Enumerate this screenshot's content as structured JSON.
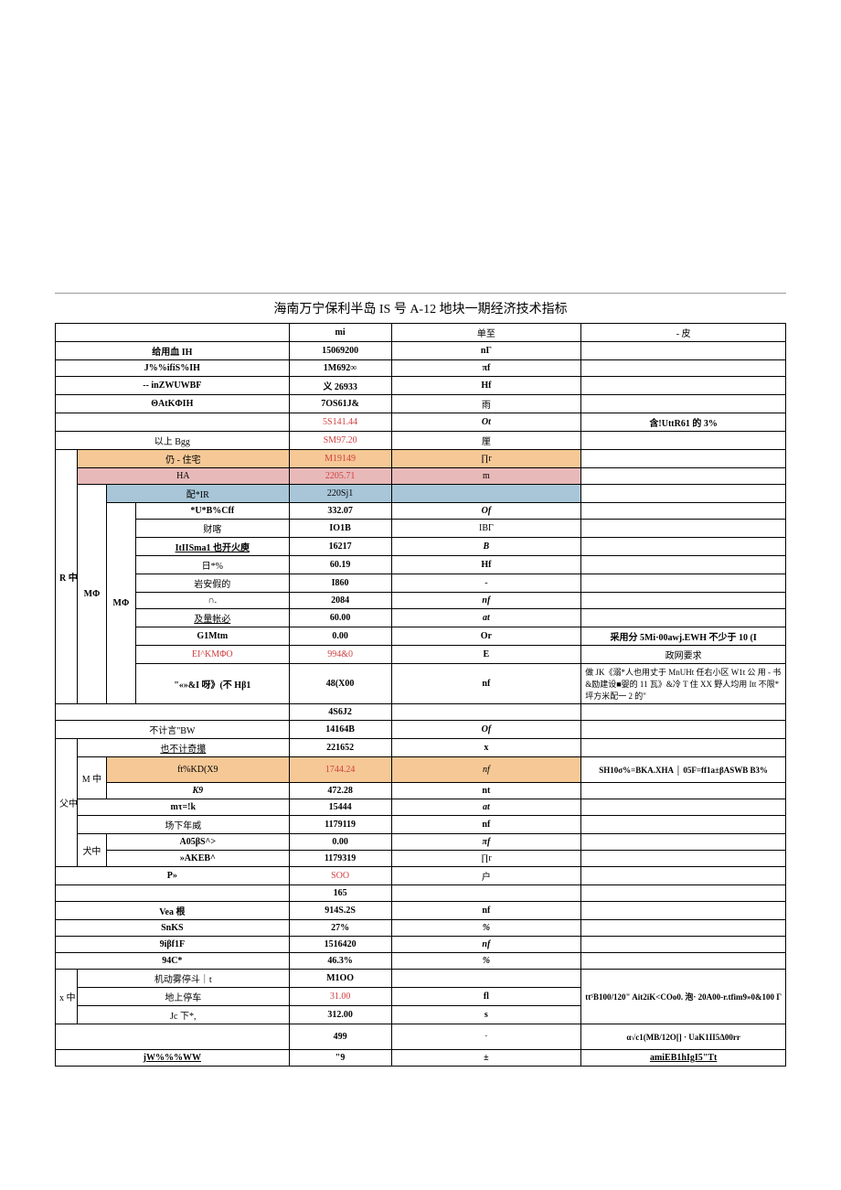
{
  "title": "海南万宁保利半岛 IS 号 A-12 地块一期经济技术指标",
  "header": {
    "col1": "mi",
    "col2": "单至",
    "col3": "- 皮"
  },
  "rows": {
    "r1": {
      "label": "给用血 IH",
      "v1": "15069200",
      "v2": "nΓ",
      "v3": ""
    },
    "r2": {
      "label": "J%%ifiS%IH",
      "v1": "1M692∞",
      "v2": "πf",
      "v3": ""
    },
    "r3": {
      "label": "-- inZWUWBF",
      "v1": "义 26933",
      "v2": "Hf",
      "v3": ""
    },
    "r4": {
      "label": "ΘAtKΦIH",
      "v1": "7OS61J&",
      "v2": "雨",
      "v3": ""
    },
    "r5": {
      "label": "",
      "v1": "5S141.44",
      "v2": "Ot",
      "v3": "含!UttR61 的 3%"
    },
    "r6": {
      "label": "以上 Bgg",
      "v1": "SM97.20",
      "v2": "厘",
      "v3": ""
    },
    "r7": {
      "label": "仍 - 住宅",
      "v1": "M19149",
      "v2": "∏r",
      "v3": ""
    },
    "r8": {
      "label": "HA",
      "v1": "2205.71",
      "v2": "m",
      "v3": ""
    },
    "r9": {
      "label": "配*IR",
      "v1": "220Sj1",
      "v2": "",
      "v3": ""
    },
    "r10": {
      "label": "*U*B%Cff",
      "v1": "332.07",
      "v2": "Of",
      "v3": ""
    },
    "r11": {
      "label": "财喀",
      "v1": "IO1B",
      "v2": "IBΓ",
      "v3": ""
    },
    "r12": {
      "label": "ItIISma1 也开火庾",
      "v1": "16217",
      "v2": "B",
      "v3": ""
    },
    "r13": {
      "label": "日*%",
      "v1": "60.19",
      "v2": "Hf",
      "v3": ""
    },
    "r14": {
      "label": "岩安假的",
      "v1": "I860",
      "v2": "-",
      "v3": ""
    },
    "r15": {
      "label": "∩.",
      "v1": "2084",
      "v2": "nf",
      "v3": ""
    },
    "r16": {
      "label": "及量帐必",
      "v1": "60.00",
      "v2": "at",
      "v3": ""
    },
    "r17": {
      "label": "G1Mtm",
      "v1": "0.00",
      "v2": "Or",
      "v3": "采用分 5Mi·00awj.EWH 不少于 10 (I"
    },
    "r18": {
      "label": "EI^KMΦO",
      "v1": "994&0",
      "v2": "E",
      "v3": "政网要求"
    },
    "r19": {
      "label": "\"«»&I 呀》(不 Hβ1",
      "v1": "48(X00",
      "v2": "nf",
      "v3": "做 JK《溺*人也用丈于 MnUHt 任右小区 W1t 公\n用 - 书&励建设■婴的 11 瓦》&冷 T 住\nXX 野人均用 Itt 不限*坪方米配一 2 的\""
    },
    "r20": {
      "label": "",
      "v1": "4S6J2",
      "v2": "",
      "v3": ""
    },
    "r21": {
      "label": "不计言\"BW",
      "v1": "14164B",
      "v2": "Of",
      "v3": ""
    },
    "r22": {
      "label": "也不计奇攥",
      "v1": "221652",
      "v2": "x",
      "v3": ""
    },
    "r23": {
      "label": "ft%KD(X9",
      "v1": "1744.24",
      "v2": "nf",
      "v3": "SH10σ%=BKA.XHA │ 05F=ff1a±βASWB\nB3%"
    },
    "r24": {
      "label": "K9",
      "v1": "472.28",
      "v2": "nt",
      "v3": ""
    },
    "r25": {
      "label": "mτ=!k",
      "v1": "15444",
      "v2": "at",
      "v3": ""
    },
    "r26": {
      "label": "场下年威",
      "v1": "1179119",
      "v2": "nf",
      "v3": ""
    },
    "r27": {
      "label": "A05βS^>",
      "v1": "0.00",
      "v2": "πf",
      "v3": ""
    },
    "r28": {
      "label": "»AKEB^",
      "v1": "1179319",
      "v2": "∏r",
      "v3": ""
    },
    "r29": {
      "label": "P»",
      "v1": "SOO",
      "v2": "户",
      "v3": ""
    },
    "r30": {
      "label": "",
      "v1": "165",
      "v2": "",
      "v3": ""
    },
    "r31": {
      "label": "Vea 根",
      "v1": "914S.2S",
      "v2": "nf",
      "v3": ""
    },
    "r32": {
      "label": "SnKS",
      "v1": "27%",
      "v2": "%",
      "v3": ""
    },
    "r33": {
      "label": "9iβf1F",
      "v1": "1516420",
      "v2": "nf",
      "v3": ""
    },
    "r34": {
      "label": "94C*",
      "v1": "46.3%",
      "v2": "%",
      "v3": ""
    },
    "r35": {
      "label": "机动雾停斗｜t",
      "v1": "M1OO",
      "v2": "",
      "v3": ""
    },
    "r36": {
      "label": "地上停车",
      "v1": "31.00",
      "v2": "fl",
      "v3": "tt⁵B100/120\"\nAit2iK<COo0. 泡· 20A00-r.tfim9»0&100 Γ"
    },
    "r37": {
      "label": "Jc 下*,",
      "v1": "312.00",
      "v2": "s",
      "v3": ""
    },
    "r38": {
      "label": "",
      "v1": "499",
      "v2": "·",
      "v3": "α√c1(MB/12O[]\n· UaK1II5Δ00rr"
    },
    "r39": {
      "label": "jW%%%WW",
      "v1": "\"9",
      "v2": "±",
      "v3": "amiEB1hIgI5\"Tt"
    }
  },
  "groups": {
    "g1": "R 中",
    "g2": "MΦ",
    "g3": "MΦ",
    "g4": "父中",
    "g5": "M 中",
    "g6": "犬中",
    "g7": "x 中"
  }
}
